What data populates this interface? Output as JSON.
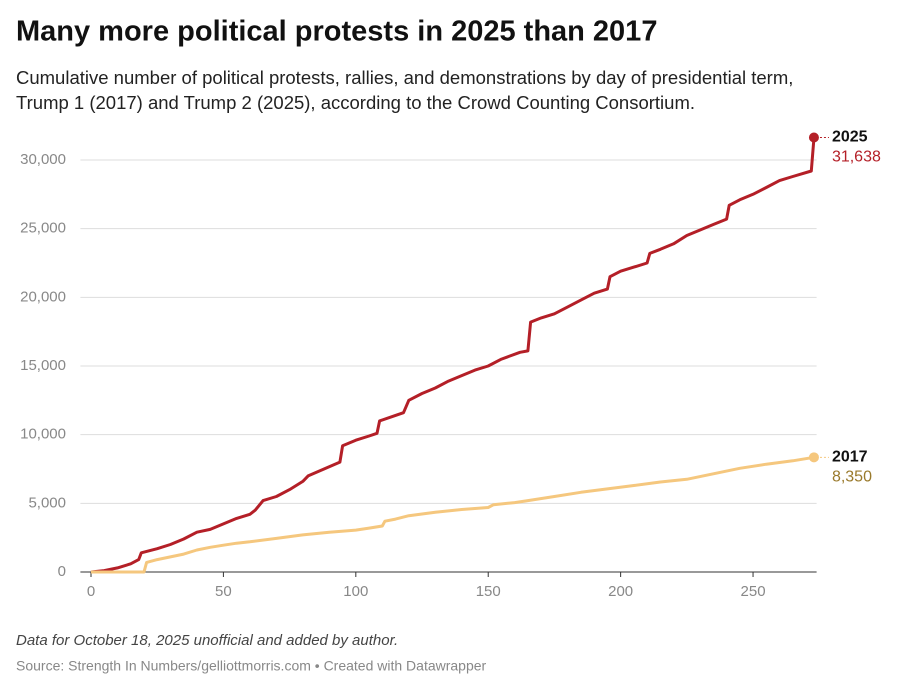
{
  "chart_data": {
    "type": "line",
    "title": "Many more political protests in 2025 than 2017",
    "subtitle": [
      "Cumulative number of political protests, rallies, and demonstrations by day of presidential term,",
      "Trump 1 (2017) and Trump 2 (2025), according to the Crowd Counting Consortium."
    ],
    "notes": "Data for October 18, 2025 unofficial and added by author.",
    "source": "Source: Strength In Numbers/gelliottmorris.com • Created with Datawrapper",
    "xlim": [
      -4,
      274
    ],
    "xticks": [
      0,
      50,
      100,
      150,
      200,
      250
    ],
    "ylim": [
      0,
      30000
    ],
    "yticks": [
      0,
      {
        "value": 5000,
        "label": "5,000"
      },
      {
        "value": 10000,
        "label": "10,000"
      },
      {
        "value": 15000,
        "label": "15,000"
      },
      {
        "value": 20000,
        "label": "20,000"
      },
      {
        "value": 25000,
        "label": "25,000"
      },
      {
        "value": 30000,
        "label": "30,000"
      }
    ],
    "grid": true,
    "series": [
      {
        "name": "2025",
        "color": "#b41f27",
        "last_value_label": "31,638",
        "x": [
          0,
          5,
          10,
          15,
          18,
          19,
          25,
          30,
          35,
          40,
          45,
          50,
          55,
          60,
          62,
          65,
          70,
          75,
          80,
          82,
          88,
          94,
          95,
          100,
          105,
          108,
          109,
          115,
          118,
          120,
          125,
          130,
          135,
          140,
          145,
          150,
          155,
          162,
          165,
          166,
          170,
          175,
          180,
          185,
          190,
          195,
          196,
          200,
          205,
          210,
          211,
          215,
          220,
          225,
          230,
          235,
          240,
          241,
          245,
          250,
          255,
          260,
          265,
          272,
          273
        ],
        "values": [
          0,
          100,
          300,
          600,
          900,
          1400,
          1700,
          2000,
          2400,
          2900,
          3100,
          3500,
          3900,
          4200,
          4500,
          5200,
          5500,
          6000,
          6600,
          7000,
          7500,
          8000,
          9200,
          9600,
          9900,
          10100,
          11000,
          11400,
          11600,
          12500,
          13000,
          13400,
          13900,
          14300,
          14700,
          15000,
          15500,
          16000,
          16100,
          18200,
          18500,
          18800,
          19300,
          19800,
          20300,
          20600,
          21500,
          21900,
          22200,
          22500,
          23200,
          23500,
          23900,
          24500,
          24900,
          25300,
          25700,
          26700,
          27100,
          27500,
          28000,
          28500,
          28800,
          29200,
          31638
        ]
      },
      {
        "name": "2017",
        "color": "#f5c77e",
        "last_value_label": "8,350",
        "x": [
          0,
          10,
          20,
          21,
          25,
          30,
          35,
          40,
          45,
          50,
          55,
          60,
          70,
          80,
          90,
          100,
          105,
          110,
          111,
          115,
          120,
          130,
          140,
          150,
          152,
          160,
          165,
          175,
          185,
          195,
          205,
          215,
          225,
          235,
          245,
          255,
          265,
          273
        ],
        "values": [
          0,
          0,
          0,
          700,
          900,
          1100,
          1300,
          1600,
          1800,
          1950,
          2100,
          2200,
          2450,
          2700,
          2900,
          3050,
          3200,
          3350,
          3700,
          3850,
          4100,
          4350,
          4550,
          4700,
          4900,
          5050,
          5200,
          5500,
          5800,
          6050,
          6300,
          6550,
          6750,
          7150,
          7550,
          7850,
          8100,
          8350
        ]
      }
    ]
  }
}
